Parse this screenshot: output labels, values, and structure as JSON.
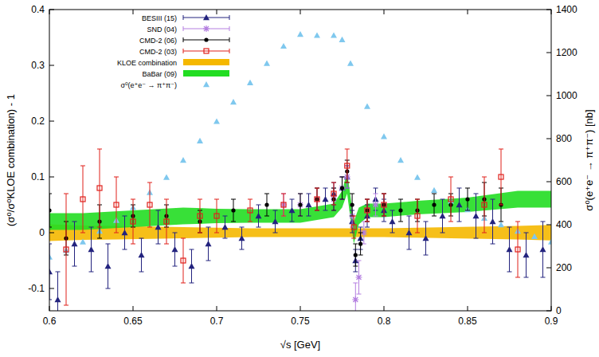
{
  "chart_data": {
    "type": "scatter",
    "x_label": "√s [GeV]",
    "y_label": "(σ⁰/σ⁰KLOE combination) - 1",
    "y2_label": "σ⁰(e⁺e⁻ → π⁺π⁻) [nb]",
    "xlim": [
      0.6,
      0.9
    ],
    "ylim": [
      -0.14,
      0.4
    ],
    "y2lim": [
      0,
      1400
    ],
    "xticks": [
      0.6,
      0.65,
      0.7,
      0.75,
      0.8,
      0.85,
      0.9
    ],
    "yticks": [
      -0.1,
      0,
      0.1,
      0.2,
      0.3,
      0.4
    ],
    "y2ticks": [
      0,
      200,
      400,
      600,
      800,
      1000,
      1200,
      1400
    ],
    "legend": "upper left",
    "grid": false,
    "series": [
      {
        "name": "BESIII (15)",
        "type": "scatter",
        "marker": "triangle",
        "color": "#23237e",
        "x": [
          0.6,
          0.605,
          0.615,
          0.625,
          0.635,
          0.645,
          0.655,
          0.665,
          0.675,
          0.685,
          0.695,
          0.705,
          0.715,
          0.725,
          0.735,
          0.745,
          0.755,
          0.765,
          0.77,
          0.775,
          0.778,
          0.781,
          0.783,
          0.786,
          0.79,
          0.795,
          0.8,
          0.805,
          0.815,
          0.825,
          0.835,
          0.845,
          0.855,
          0.865,
          0.875,
          0.885,
          0.895
        ],
        "values": [
          -0.07,
          -0.12,
          -0.02,
          -0.03,
          -0.06,
          0.0,
          -0.04,
          0.01,
          -0.03,
          -0.06,
          -0.02,
          0.01,
          -0.01,
          0.03,
          0.02,
          0.04,
          0.05,
          0.06,
          0.07,
          0.08,
          0.1,
          0.02,
          -0.05,
          -0.01,
          0.03,
          0.06,
          0.04,
          0.02,
          0.0,
          -0.01,
          0.03,
          0.05,
          0.03,
          0.02,
          -0.03,
          -0.04,
          -0.03
        ],
        "errors": [
          0.05,
          0.05,
          0.04,
          0.04,
          0.04,
          0.03,
          0.03,
          0.03,
          0.03,
          0.03,
          0.03,
          0.02,
          0.02,
          0.02,
          0.02,
          0.02,
          0.02,
          0.02,
          0.02,
          0.02,
          0.02,
          0.02,
          0.02,
          0.02,
          0.02,
          0.02,
          0.02,
          0.02,
          0.03,
          0.03,
          0.03,
          0.03,
          0.04,
          0.04,
          0.04,
          0.04,
          0.05
        ]
      },
      {
        "name": "SND (04)",
        "type": "scatter",
        "marker": "star",
        "color": "#b47fe0",
        "x": [
          0.74,
          0.75,
          0.76,
          0.77,
          0.775,
          0.778,
          0.781,
          0.783,
          0.785,
          0.788,
          0.79,
          0.795,
          0.8
        ],
        "values": [
          0.05,
          0.05,
          0.06,
          0.06,
          0.08,
          0.1,
          0.03,
          -0.12,
          -0.08,
          0.0,
          0.04,
          0.05,
          0.05
        ],
        "errors": [
          0.02,
          0.02,
          0.02,
          0.02,
          0.02,
          0.02,
          0.02,
          0.03,
          0.03,
          0.02,
          0.02,
          0.02,
          0.02
        ]
      },
      {
        "name": "CMD-2 (06)",
        "type": "scatter",
        "marker": "circle",
        "color": "#000000",
        "x": [
          0.6,
          0.61,
          0.63,
          0.65,
          0.67,
          0.69,
          0.71,
          0.73,
          0.75,
          0.76,
          0.77,
          0.775,
          0.778,
          0.781,
          0.783,
          0.786,
          0.79,
          0.8,
          0.81,
          0.82,
          0.83,
          0.84,
          0.85,
          0.86,
          0.87
        ],
        "values": [
          0.04,
          -0.01,
          0.02,
          0.03,
          0.03,
          0.02,
          0.04,
          0.05,
          0.05,
          0.06,
          0.06,
          0.08,
          0.11,
          0.05,
          -0.04,
          -0.02,
          0.04,
          0.05,
          0.04,
          0.04,
          0.05,
          0.05,
          0.06,
          0.06,
          0.05
        ],
        "errors": [
          0.03,
          0.03,
          0.03,
          0.02,
          0.02,
          0.02,
          0.02,
          0.02,
          0.02,
          0.02,
          0.02,
          0.02,
          0.02,
          0.02,
          0.02,
          0.02,
          0.02,
          0.02,
          0.02,
          0.02,
          0.02,
          0.02,
          0.02,
          0.03,
          0.03
        ]
      },
      {
        "name": "CMD-2 (03)",
        "type": "scatter",
        "marker": "square-open",
        "color": "#e0201b",
        "x": [
          0.61,
          0.62,
          0.63,
          0.64,
          0.65,
          0.66,
          0.67,
          0.68,
          0.69,
          0.7,
          0.72,
          0.74,
          0.76,
          0.77,
          0.778,
          0.782,
          0.79,
          0.8,
          0.82,
          0.84,
          0.86,
          0.87,
          0.88
        ],
        "values": [
          -0.03,
          0.06,
          0.08,
          0.05,
          0.02,
          0.05,
          0.02,
          -0.05,
          0.03,
          0.03,
          0.04,
          0.05,
          0.06,
          0.07,
          0.12,
          0.01,
          0.04,
          0.05,
          0.03,
          0.06,
          0.05,
          0.1,
          -0.03
        ],
        "errors": [
          0.1,
          0.06,
          0.07,
          0.05,
          0.04,
          0.04,
          0.04,
          0.04,
          0.03,
          0.03,
          0.02,
          0.02,
          0.02,
          0.02,
          0.03,
          0.02,
          0.02,
          0.02,
          0.03,
          0.04,
          0.05,
          0.05,
          0.05
        ]
      },
      {
        "name": "KLOE combination",
        "type": "band",
        "color": "#f5b800",
        "x": [
          0.6,
          0.62,
          0.64,
          0.66,
          0.68,
          0.7,
          0.72,
          0.74,
          0.76,
          0.78,
          0.8,
          0.82,
          0.84,
          0.86,
          0.88,
          0.9
        ],
        "values": [
          0.0,
          0.0,
          0.0,
          0.0,
          0.0,
          0.0,
          0.0,
          0.0,
          0.0,
          0.0,
          0.0,
          0.0,
          0.0,
          0.0,
          0.0,
          0.0
        ],
        "errors": [
          0.015,
          0.013,
          0.012,
          0.011,
          0.01,
          0.009,
          0.008,
          0.008,
          0.008,
          0.008,
          0.008,
          0.009,
          0.01,
          0.011,
          0.012,
          0.014
        ]
      },
      {
        "name": "BaBar (09)",
        "type": "band",
        "color": "#22dd22",
        "x": [
          0.6,
          0.62,
          0.65,
          0.68,
          0.7,
          0.72,
          0.75,
          0.77,
          0.775,
          0.778,
          0.782,
          0.785,
          0.79,
          0.8,
          0.82,
          0.85,
          0.88,
          0.9
        ],
        "values": [
          0.02,
          0.02,
          0.025,
          0.03,
          0.03,
          0.03,
          0.03,
          0.04,
          0.06,
          0.09,
          0.0,
          0.03,
          0.04,
          0.04,
          0.045,
          0.05,
          0.06,
          0.06
        ],
        "errors": [
          0.015,
          0.015,
          0.015,
          0.015,
          0.013,
          0.012,
          0.012,
          0.012,
          0.015,
          0.02,
          0.02,
          0.015,
          0.012,
          0.012,
          0.012,
          0.013,
          0.015,
          0.015
        ]
      },
      {
        "name": "σ⁰(e⁺e⁻ → π⁺π⁻)",
        "type": "scatter",
        "marker": "triangle",
        "color": "#7fc8ee",
        "axis": "y2",
        "x": [
          0.6,
          0.61,
          0.62,
          0.63,
          0.64,
          0.65,
          0.66,
          0.67,
          0.68,
          0.69,
          0.7,
          0.71,
          0.72,
          0.73,
          0.74,
          0.75,
          0.76,
          0.77,
          0.775,
          0.78,
          0.79,
          0.8,
          0.81,
          0.82,
          0.83,
          0.84,
          0.85,
          0.86,
          0.87,
          0.88,
          0.89,
          0.9
        ],
        "values": [
          250,
          280,
          320,
          370,
          420,
          480,
          550,
          620,
          700,
          790,
          880,
          970,
          1060,
          1150,
          1230,
          1285,
          1280,
          1280,
          1260,
          1150,
          950,
          810,
          700,
          620,
          560,
          510,
          470,
          430,
          400,
          370,
          345,
          320
        ]
      }
    ]
  }
}
